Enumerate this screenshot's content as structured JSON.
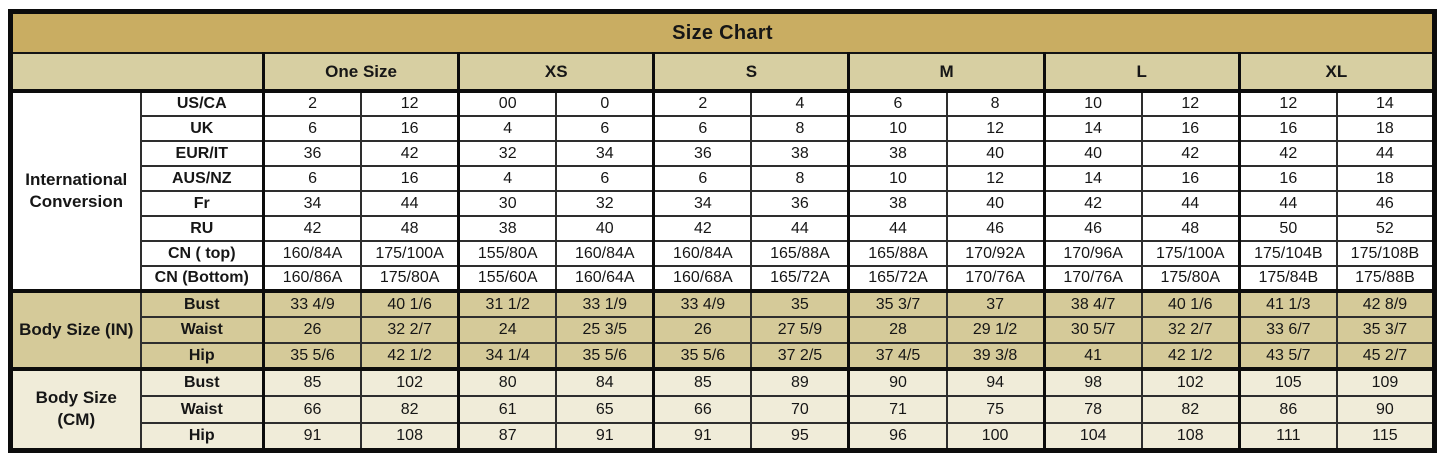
{
  "chart_data": {
    "type": "table",
    "title": "Size Chart",
    "column_groups": [
      "One Size",
      "XS",
      "S",
      "M",
      "L",
      "XL"
    ],
    "columns_per_group": 2,
    "sections": [
      {
        "id": "international",
        "label": "International Conversion",
        "rows": [
          {
            "label": "US/CA",
            "values": [
              "2",
              "12",
              "00",
              "0",
              "2",
              "4",
              "6",
              "8",
              "10",
              "12",
              "12",
              "14"
            ]
          },
          {
            "label": "UK",
            "values": [
              "6",
              "16",
              "4",
              "6",
              "6",
              "8",
              "10",
              "12",
              "14",
              "16",
              "16",
              "18"
            ]
          },
          {
            "label": "EUR/IT",
            "values": [
              "36",
              "42",
              "32",
              "34",
              "36",
              "38",
              "38",
              "40",
              "40",
              "42",
              "42",
              "44"
            ]
          },
          {
            "label": "AUS/NZ",
            "values": [
              "6",
              "16",
              "4",
              "6",
              "6",
              "8",
              "10",
              "12",
              "14",
              "16",
              "16",
              "18"
            ]
          },
          {
            "label": "Fr",
            "values": [
              "34",
              "44",
              "30",
              "32",
              "34",
              "36",
              "38",
              "40",
              "42",
              "44",
              "44",
              "46"
            ]
          },
          {
            "label": "RU",
            "values": [
              "42",
              "48",
              "38",
              "40",
              "42",
              "44",
              "44",
              "46",
              "46",
              "48",
              "50",
              "52"
            ]
          },
          {
            "label": "CN ( top)",
            "values": [
              "160/84A",
              "175/100A",
              "155/80A",
              "160/84A",
              "160/84A",
              "165/88A",
              "165/88A",
              "170/92A",
              "170/96A",
              "175/100A",
              "175/104B",
              "175/108B"
            ]
          },
          {
            "label": "CN (Bottom)",
            "values": [
              "160/86A",
              "175/80A",
              "155/60A",
              "160/64A",
              "160/68A",
              "165/72A",
              "165/72A",
              "170/76A",
              "170/76A",
              "175/80A",
              "175/84B",
              "175/88B"
            ]
          }
        ]
      },
      {
        "id": "body-in",
        "label": "Body Size (IN)",
        "rows": [
          {
            "label": "Bust",
            "values": [
              "33 4/9",
              "40 1/6",
              "31 1/2",
              "33 1/9",
              "33 4/9",
              "35",
              "35 3/7",
              "37",
              "38 4/7",
              "40 1/6",
              "41 1/3",
              "42 8/9"
            ]
          },
          {
            "label": "Waist",
            "values": [
              "26",
              "32 2/7",
              "24",
              "25 3/5",
              "26",
              "27 5/9",
              "28",
              "29 1/2",
              "30 5/7",
              "32 2/7",
              "33 6/7",
              "35 3/7"
            ]
          },
          {
            "label": "Hip",
            "values": [
              "35 5/6",
              "42 1/2",
              "34 1/4",
              "35 5/6",
              "35 5/6",
              "37 2/5",
              "37 4/5",
              "39 3/8",
              "41",
              "42 1/2",
              "43 5/7",
              "45 2/7"
            ]
          }
        ]
      },
      {
        "id": "body-cm",
        "label": "Body Size (CM)",
        "rows": [
          {
            "label": "Bust",
            "values": [
              "85",
              "102",
              "80",
              "84",
              "85",
              "89",
              "90",
              "94",
              "98",
              "102",
              "105",
              "109"
            ]
          },
          {
            "label": "Waist",
            "values": [
              "66",
              "82",
              "61",
              "65",
              "66",
              "70",
              "71",
              "75",
              "78",
              "82",
              "86",
              "90"
            ]
          },
          {
            "label": "Hip",
            "values": [
              "91",
              "108",
              "87",
              "91",
              "91",
              "95",
              "96",
              "100",
              "104",
              "108",
              "111",
              "115"
            ]
          }
        ]
      }
    ],
    "layout": {
      "legend_position": "none",
      "grid": "on"
    }
  },
  "colors": {
    "title_bar": "#c9ad62",
    "header_row": "#d7cfa2",
    "section_international_bg": "#ffffff",
    "section_body_in_bg": "#d5ca99",
    "section_body_cm_bg": "#f0ecd9",
    "border": "#0c0c0c",
    "text": "#161616"
  }
}
